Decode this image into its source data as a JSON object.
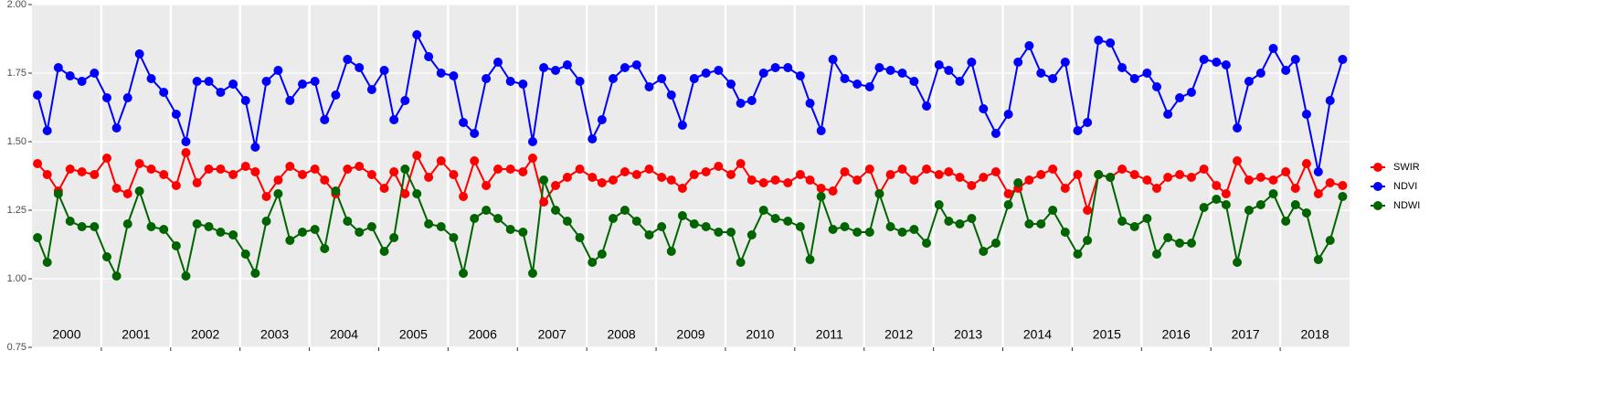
{
  "chart_data": {
    "type": "line",
    "x": [
      2000.08,
      2000.22,
      2000.38,
      2000.55,
      2000.72,
      2000.9,
      2001.08,
      2001.22,
      2001.38,
      2001.55,
      2001.72,
      2001.9,
      2002.08,
      2002.22,
      2002.38,
      2002.55,
      2002.72,
      2002.9,
      2003.08,
      2003.22,
      2003.38,
      2003.55,
      2003.72,
      2003.9,
      2004.08,
      2004.22,
      2004.38,
      2004.55,
      2004.72,
      2004.9,
      2005.08,
      2005.22,
      2005.38,
      2005.55,
      2005.72,
      2005.9,
      2006.08,
      2006.22,
      2006.38,
      2006.55,
      2006.72,
      2006.9,
      2007.08,
      2007.22,
      2007.38,
      2007.55,
      2007.72,
      2007.9,
      2008.08,
      2008.22,
      2008.38,
      2008.55,
      2008.72,
      2008.9,
      2009.08,
      2009.22,
      2009.38,
      2009.55,
      2009.72,
      2009.9,
      2010.08,
      2010.22,
      2010.38,
      2010.55,
      2010.72,
      2010.9,
      2011.08,
      2011.22,
      2011.38,
      2011.55,
      2011.72,
      2011.9,
      2012.08,
      2012.22,
      2012.38,
      2012.55,
      2012.72,
      2012.9,
      2013.08,
      2013.22,
      2013.38,
      2013.55,
      2013.72,
      2013.9,
      2014.08,
      2014.22,
      2014.38,
      2014.55,
      2014.72,
      2014.9,
      2015.08,
      2015.22,
      2015.38,
      2015.55,
      2015.72,
      2015.9,
      2016.08,
      2016.22,
      2016.38,
      2016.55,
      2016.72,
      2016.9,
      2017.08,
      2017.22,
      2017.38,
      2017.55,
      2017.72,
      2017.9,
      2018.08,
      2018.22,
      2018.38,
      2018.55,
      2018.72,
      2018.9
    ],
    "series": [
      {
        "name": "SWIR",
        "color": "#ff0000",
        "values": [
          1.42,
          1.38,
          1.32,
          1.4,
          1.39,
          1.38,
          1.44,
          1.33,
          1.31,
          1.42,
          1.4,
          1.38,
          1.34,
          1.46,
          1.35,
          1.4,
          1.4,
          1.38,
          1.41,
          1.39,
          1.3,
          1.36,
          1.41,
          1.38,
          1.4,
          1.36,
          1.31,
          1.4,
          1.41,
          1.38,
          1.33,
          1.39,
          1.31,
          1.45,
          1.37,
          1.43,
          1.38,
          1.3,
          1.43,
          1.34,
          1.4,
          1.4,
          1.39,
          1.44,
          1.28,
          1.34,
          1.37,
          1.4,
          1.37,
          1.35,
          1.36,
          1.39,
          1.38,
          1.4,
          1.37,
          1.36,
          1.33,
          1.38,
          1.39,
          1.41,
          1.38,
          1.42,
          1.36,
          1.35,
          1.36,
          1.35,
          1.38,
          1.36,
          1.33,
          1.32,
          1.39,
          1.36,
          1.4,
          1.31,
          1.38,
          1.4,
          1.36,
          1.4,
          1.38,
          1.39,
          1.37,
          1.34,
          1.37,
          1.39,
          1.31,
          1.33,
          1.36,
          1.38,
          1.4,
          1.33,
          1.38,
          1.25,
          1.38,
          1.37,
          1.4,
          1.38,
          1.36,
          1.33,
          1.37,
          1.38,
          1.37,
          1.4,
          1.34,
          1.31,
          1.43,
          1.36,
          1.37,
          1.36,
          1.39,
          1.33,
          1.42,
          1.31,
          1.35,
          1.34
        ]
      },
      {
        "name": "NDVI",
        "color": "#0000ff",
        "values": [
          1.67,
          1.54,
          1.77,
          1.74,
          1.72,
          1.75,
          1.66,
          1.55,
          1.66,
          1.82,
          1.73,
          1.68,
          1.6,
          1.5,
          1.72,
          1.72,
          1.68,
          1.71,
          1.65,
          1.48,
          1.72,
          1.76,
          1.65,
          1.71,
          1.72,
          1.58,
          1.67,
          1.8,
          1.77,
          1.69,
          1.76,
          1.58,
          1.65,
          1.89,
          1.81,
          1.75,
          1.74,
          1.57,
          1.53,
          1.73,
          1.79,
          1.72,
          1.71,
          1.5,
          1.77,
          1.76,
          1.78,
          1.72,
          1.51,
          1.58,
          1.73,
          1.77,
          1.78,
          1.7,
          1.73,
          1.67,
          1.56,
          1.73,
          1.75,
          1.76,
          1.71,
          1.64,
          1.65,
          1.75,
          1.77,
          1.77,
          1.74,
          1.64,
          1.54,
          1.8,
          1.73,
          1.71,
          1.7,
          1.77,
          1.76,
          1.75,
          1.72,
          1.63,
          1.78,
          1.76,
          1.72,
          1.79,
          1.62,
          1.53,
          1.6,
          1.79,
          1.85,
          1.75,
          1.73,
          1.79,
          1.54,
          1.57,
          1.87,
          1.86,
          1.77,
          1.73,
          1.75,
          1.7,
          1.6,
          1.66,
          1.68,
          1.8,
          1.79,
          1.78,
          1.55,
          1.72,
          1.75,
          1.84,
          1.76,
          1.8,
          1.6,
          1.39,
          1.65,
          1.8
        ]
      },
      {
        "name": "NDWI",
        "color": "#006400",
        "values": [
          1.15,
          1.06,
          1.31,
          1.21,
          1.19,
          1.19,
          1.08,
          1.01,
          1.2,
          1.32,
          1.19,
          1.18,
          1.12,
          1.01,
          1.2,
          1.19,
          1.17,
          1.16,
          1.09,
          1.02,
          1.21,
          1.31,
          1.14,
          1.17,
          1.18,
          1.11,
          1.32,
          1.21,
          1.17,
          1.19,
          1.1,
          1.15,
          1.4,
          1.31,
          1.2,
          1.19,
          1.15,
          1.02,
          1.22,
          1.25,
          1.22,
          1.18,
          1.17,
          1.02,
          1.36,
          1.25,
          1.21,
          1.15,
          1.06,
          1.09,
          1.22,
          1.25,
          1.21,
          1.16,
          1.19,
          1.1,
          1.23,
          1.2,
          1.19,
          1.17,
          1.17,
          1.06,
          1.16,
          1.25,
          1.22,
          1.21,
          1.19,
          1.07,
          1.3,
          1.18,
          1.19,
          1.17,
          1.17,
          1.31,
          1.19,
          1.17,
          1.18,
          1.13,
          1.27,
          1.21,
          1.2,
          1.22,
          1.1,
          1.13,
          1.27,
          1.35,
          1.2,
          1.2,
          1.25,
          1.17,
          1.09,
          1.14,
          1.38,
          1.37,
          1.21,
          1.19,
          1.22,
          1.09,
          1.15,
          1.13,
          1.13,
          1.26,
          1.29,
          1.27,
          1.06,
          1.25,
          1.27,
          1.31,
          1.21,
          1.27,
          1.24,
          1.07,
          1.14,
          1.3
        ]
      }
    ],
    "xlim": [
      2000,
      2019
    ],
    "ylim": [
      0.75,
      2.0
    ],
    "yticks": [
      {
        "value": 0.75,
        "label": "0.75"
      },
      {
        "value": 1.0,
        "label": "1.00"
      },
      {
        "value": 1.25,
        "label": "1.25"
      },
      {
        "value": 1.5,
        "label": "1.50"
      },
      {
        "value": 1.75,
        "label": "1.75"
      },
      {
        "value": 2.0,
        "label": "2.00"
      }
    ],
    "vlines": [
      2001,
      2002,
      2003,
      2004,
      2005,
      2006,
      2007,
      2008,
      2009,
      2010,
      2011,
      2012,
      2013,
      2014,
      2015,
      2016,
      2017,
      2018
    ],
    "annotations": [
      {
        "text": "2000",
        "x": 2000.5
      },
      {
        "text": "2001",
        "x": 2001.5
      },
      {
        "text": "2002",
        "x": 2002.5
      },
      {
        "text": "2003",
        "x": 2003.5
      },
      {
        "text": "2004",
        "x": 2004.5
      },
      {
        "text": "2005",
        "x": 2005.5
      },
      {
        "text": "2006",
        "x": 2006.5
      },
      {
        "text": "2007",
        "x": 2007.5
      },
      {
        "text": "2008",
        "x": 2008.5
      },
      {
        "text": "2009",
        "x": 2009.5
      },
      {
        "text": "2010",
        "x": 2010.5
      },
      {
        "text": "2011",
        "x": 2011.5
      },
      {
        "text": "2012",
        "x": 2012.5
      },
      {
        "text": "2013",
        "x": 2013.5
      },
      {
        "text": "2014",
        "x": 2014.5
      },
      {
        "text": "2015",
        "x": 2015.5
      },
      {
        "text": "2016",
        "x": 2016.5
      },
      {
        "text": "2017",
        "x": 2017.5
      },
      {
        "text": "2018",
        "x": 2018.5
      }
    ],
    "grid": true,
    "legend": "right"
  }
}
